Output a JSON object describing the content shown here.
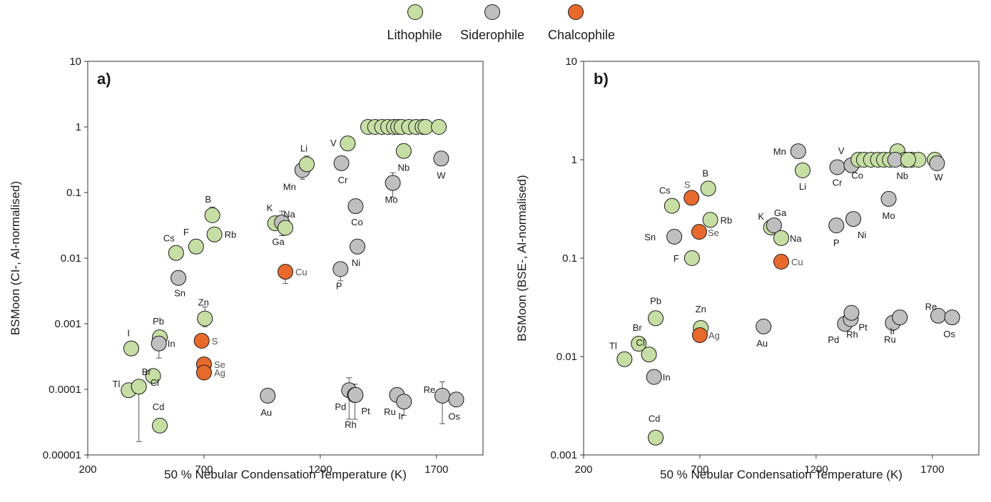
{
  "legend": {
    "items": [
      {
        "label": "Lithophile",
        "color": "#c6dea3"
      },
      {
        "label": "Siderophile",
        "color": "#bfbfbf"
      },
      {
        "label": "Chalcophile",
        "color": "#e8692c"
      }
    ]
  },
  "chart_data": [
    {
      "type": "scatter",
      "panel_label": "a)",
      "xlabel": "50 % Nebular Condensation Temperature (K)",
      "ylabel": "BSMoon (CI-, Al-normalised)",
      "xlim": [
        200,
        1900
      ],
      "ylim": [
        1e-05,
        10
      ],
      "yscale": "log",
      "xticks": [
        200,
        700,
        1200,
        1700
      ],
      "yticks": [
        1e-05,
        0.0001,
        0.001,
        0.01,
        0.1,
        1,
        10
      ],
      "ytick_labels": [
        "0.00001",
        "0.0001",
        "0.001",
        "0.01",
        "0.1",
        "1",
        "10"
      ],
      "points": [
        {
          "label": "I",
          "x": 387,
          "y": 0.00042,
          "group": "Lithophile"
        },
        {
          "label": "Tl",
          "x": 376,
          "y": 9.7e-05,
          "group": "Lithophile"
        },
        {
          "label": "Br",
          "x": 420,
          "y": 0.00011,
          "group": "Lithophile",
          "err": [
            1.6e-05,
            0.00011
          ]
        },
        {
          "label": "Cl",
          "x": 481,
          "y": 0.00016,
          "group": "Lithophile"
        },
        {
          "label": "Pb",
          "x": 510,
          "y": 0.00062,
          "group": "Lithophile"
        },
        {
          "label": "In",
          "x": 506,
          "y": 0.0005,
          "group": "Siderophile",
          "err": [
            0.0003,
            0.0005
          ]
        },
        {
          "label": "Cd",
          "x": 510,
          "y": 2.8e-05,
          "group": "Lithophile"
        },
        {
          "label": "Cs",
          "x": 580,
          "y": 0.012,
          "group": "Lithophile"
        },
        {
          "label": "Sn",
          "x": 590,
          "y": 0.005,
          "group": "Siderophile"
        },
        {
          "label": "F",
          "x": 666,
          "y": 0.015,
          "group": "Lithophile"
        },
        {
          "label": "B",
          "x": 736,
          "y": 0.045,
          "group": "Lithophile",
          "err": [
            0.045,
            0.06
          ]
        },
        {
          "label": "Rb",
          "x": 745,
          "y": 0.023,
          "group": "Lithophile"
        },
        {
          "label": "Zn",
          "x": 704,
          "y": 0.0012,
          "group": "Lithophile",
          "err": [
            0.0009,
            0.0018
          ]
        },
        {
          "label": "S",
          "x": 690,
          "y": 0.00055,
          "group": "Chalcophile"
        },
        {
          "label": "Se",
          "x": 700,
          "y": 0.00024,
          "group": "Chalcophile"
        },
        {
          "label": "Ag",
          "x": 700,
          "y": 0.00018,
          "group": "Chalcophile"
        },
        {
          "label": "K",
          "x": 1006,
          "y": 0.034,
          "group": "Lithophile"
        },
        {
          "label": "Na",
          "x": 1035,
          "y": 0.035,
          "group": "Siderophile",
          "err": [
            0.022,
            0.052
          ]
        },
        {
          "label": "Ga",
          "x": 1050,
          "y": 0.029,
          "group": "Lithophile"
        },
        {
          "label": "Cu",
          "x": 1050,
          "y": 0.0062,
          "group": "Chalcophile",
          "err": [
            0.0041,
            0.0079
          ]
        },
        {
          "label": "Au",
          "x": 974,
          "y": 8e-05,
          "group": "Siderophile"
        },
        {
          "label": "Mn",
          "x": 1123,
          "y": 0.22,
          "group": "Siderophile",
          "err": [
            0.16,
            0.22
          ]
        },
        {
          "label": "Li",
          "x": 1142,
          "y": 0.27,
          "group": "Lithophile",
          "err": [
            0.27,
            0.36
          ]
        },
        {
          "label": "Cr",
          "x": 1291,
          "y": 0.28,
          "group": "Siderophile"
        },
        {
          "label": "Co",
          "x": 1352,
          "y": 0.062,
          "group": "Siderophile"
        },
        {
          "label": "Ni",
          "x": 1360,
          "y": 0.015,
          "group": "Siderophile"
        },
        {
          "label": "P",
          "x": 1287,
          "y": 0.0068,
          "group": "Siderophile",
          "err": [
            0.0045,
            0.0068
          ]
        },
        {
          "label": "Pd",
          "x": 1324,
          "y": 9.7e-05,
          "group": "Siderophile",
          "err": [
            3.5e-05,
            0.00015
          ]
        },
        {
          "label": "Rh",
          "x": 1349,
          "y": 8.2e-05,
          "group": "Siderophile",
          "err": [
            3.5e-05,
            0.00012
          ]
        },
        {
          "label": "Pt",
          "x": 1352,
          "y": 8.2e-05,
          "group": "Siderophile"
        },
        {
          "label": "Ru",
          "x": 1530,
          "y": 8.2e-05,
          "group": "Siderophile"
        },
        {
          "label": "Ir",
          "x": 1560,
          "y": 6.5e-05,
          "group": "Siderophile",
          "err": [
            4e-05,
            6.5e-05
          ]
        },
        {
          "label": "Re",
          "x": 1725,
          "y": 8e-05,
          "group": "Siderophile",
          "err": [
            3e-05,
            0.00013
          ]
        },
        {
          "label": "Os",
          "x": 1785,
          "y": 7e-05,
          "group": "Siderophile"
        },
        {
          "label": "V",
          "x": 1318,
          "y": 0.56,
          "group": "Lithophile"
        },
        {
          "label": "",
          "x": 1406,
          "y": 1.0,
          "group": "Lithophile"
        },
        {
          "label": "",
          "x": 1436,
          "y": 1.0,
          "group": "Lithophile"
        },
        {
          "label": "",
          "x": 1466,
          "y": 1.0,
          "group": "Lithophile"
        },
        {
          "label": "",
          "x": 1492,
          "y": 1.0,
          "group": "Lithophile"
        },
        {
          "label": "",
          "x": 1517,
          "y": 1.0,
          "group": "Lithophile"
        },
        {
          "label": "",
          "x": 1535,
          "y": 1.0,
          "group": "Lithophile"
        },
        {
          "label": "",
          "x": 1550,
          "y": 1.0,
          "group": "Lithophile"
        },
        {
          "label": "",
          "x": 1582,
          "y": 1.0,
          "group": "Lithophile"
        },
        {
          "label": "",
          "x": 1612,
          "y": 1.0,
          "group": "Lithophile"
        },
        {
          "label": "",
          "x": 1640,
          "y": 1.0,
          "group": "Lithophile"
        },
        {
          "label": "",
          "x": 1653,
          "y": 1.0,
          "group": "Lithophile"
        },
        {
          "label": "",
          "x": 1710,
          "y": 1.0,
          "group": "Lithophile"
        },
        {
          "label": "Nb",
          "x": 1559,
          "y": 0.43,
          "group": "Lithophile"
        },
        {
          "label": "Mo",
          "x": 1512,
          "y": 0.14,
          "group": "Siderophile",
          "err": [
            0.085,
            0.2
          ]
        },
        {
          "label": "W",
          "x": 1720,
          "y": 0.33,
          "group": "Siderophile"
        }
      ]
    },
    {
      "type": "scatter",
      "panel_label": "b)",
      "xlabel": "50 % Nebular Condensation Temperature (K)",
      "ylabel": "BSMoon (BSE-, Al-normalised)",
      "xlim": [
        200,
        1900
      ],
      "ylim": [
        0.001,
        10
      ],
      "yscale": "log",
      "xticks": [
        200,
        700,
        1200,
        1700
      ],
      "yticks": [
        0.001,
        0.01,
        0.1,
        1,
        10
      ],
      "ytick_labels": [
        "0.001",
        "0.01",
        "0.1",
        "1",
        "10"
      ],
      "points": [
        {
          "label": "Tl",
          "x": 376,
          "y": 0.0094,
          "group": "Lithophile"
        },
        {
          "label": "Br",
          "x": 437,
          "y": 0.0135,
          "group": "Lithophile"
        },
        {
          "label": "Cl",
          "x": 481,
          "y": 0.0105,
          "group": "Lithophile"
        },
        {
          "label": "Pb",
          "x": 510,
          "y": 0.0245,
          "group": "Lithophile"
        },
        {
          "label": "In",
          "x": 503,
          "y": 0.0062,
          "group": "Siderophile"
        },
        {
          "label": "Cd",
          "x": 510,
          "y": 0.0015,
          "group": "Lithophile"
        },
        {
          "label": "Zn",
          "x": 704,
          "y": 0.0195,
          "group": "Lithophile"
        },
        {
          "label": "Ag",
          "x": 700,
          "y": 0.0165,
          "group": "Chalcophile"
        },
        {
          "label": "Au",
          "x": 974,
          "y": 0.0202,
          "group": "Siderophile"
        },
        {
          "label": "Pd",
          "x": 1324,
          "y": 0.0215,
          "group": "Siderophile"
        },
        {
          "label": "Rh",
          "x": 1349,
          "y": 0.024,
          "group": "Siderophile"
        },
        {
          "label": "Pt",
          "x": 1352,
          "y": 0.0278,
          "group": "Siderophile"
        },
        {
          "label": "Ru",
          "x": 1530,
          "y": 0.022,
          "group": "Siderophile"
        },
        {
          "label": "Ir",
          "x": 1560,
          "y": 0.025,
          "group": "Siderophile"
        },
        {
          "label": "Re",
          "x": 1725,
          "y": 0.026,
          "group": "Siderophile"
        },
        {
          "label": "Os",
          "x": 1785,
          "y": 0.025,
          "group": "Siderophile"
        },
        {
          "label": "Cs",
          "x": 580,
          "y": 0.34,
          "group": "Lithophile"
        },
        {
          "label": "S",
          "x": 664,
          "y": 0.41,
          "group": "Chalcophile"
        },
        {
          "label": "B",
          "x": 736,
          "y": 0.51,
          "group": "Lithophile"
        },
        {
          "label": "Rb",
          "x": 745,
          "y": 0.245,
          "group": "Lithophile"
        },
        {
          "label": "Sn",
          "x": 590,
          "y": 0.165,
          "group": "Siderophile"
        },
        {
          "label": "Se",
          "x": 697,
          "y": 0.185,
          "group": "Chalcophile"
        },
        {
          "label": "F",
          "x": 666,
          "y": 0.1,
          "group": "Lithophile"
        },
        {
          "label": "K",
          "x": 1006,
          "y": 0.205,
          "group": "Lithophile"
        },
        {
          "label": "Ga",
          "x": 1019,
          "y": 0.215,
          "group": "Siderophile"
        },
        {
          "label": "Na",
          "x": 1050,
          "y": 0.16,
          "group": "Lithophile"
        },
        {
          "label": "Cu",
          "x": 1050,
          "y": 0.092,
          "group": "Chalcophile"
        },
        {
          "label": "Mn",
          "x": 1123,
          "y": 1.22,
          "group": "Siderophile"
        },
        {
          "label": "Li",
          "x": 1142,
          "y": 0.78,
          "group": "Lithophile"
        },
        {
          "label": "Cr",
          "x": 1291,
          "y": 0.84,
          "group": "Siderophile"
        },
        {
          "label": "Co",
          "x": 1352,
          "y": 0.88,
          "group": "Siderophile"
        },
        {
          "label": "P",
          "x": 1287,
          "y": 0.215,
          "group": "Siderophile"
        },
        {
          "label": "Ni",
          "x": 1360,
          "y": 0.25,
          "group": "Siderophile"
        },
        {
          "label": "Mo",
          "x": 1512,
          "y": 0.4,
          "group": "Siderophile"
        },
        {
          "label": "V",
          "x": 1382,
          "y": 1.0,
          "group": "Lithophile"
        },
        {
          "label": "",
          "x": 1406,
          "y": 1.0,
          "group": "Lithophile"
        },
        {
          "label": "",
          "x": 1436,
          "y": 1.0,
          "group": "Lithophile"
        },
        {
          "label": "",
          "x": 1466,
          "y": 1.0,
          "group": "Lithophile"
        },
        {
          "label": "",
          "x": 1492,
          "y": 1.0,
          "group": "Lithophile"
        },
        {
          "label": "",
          "x": 1517,
          "y": 1.0,
          "group": "Lithophile"
        },
        {
          "label": "",
          "x": 1550,
          "y": 1.22,
          "group": "Lithophile"
        },
        {
          "label": "",
          "x": 1582,
          "y": 1.0,
          "group": "Lithophile"
        },
        {
          "label": "",
          "x": 1612,
          "y": 1.0,
          "group": "Lithophile"
        },
        {
          "label": "",
          "x": 1640,
          "y": 1.0,
          "group": "Lithophile"
        },
        {
          "label": "",
          "x": 1710,
          "y": 1.0,
          "group": "Lithophile"
        },
        {
          "label": "Nb",
          "x": 1540,
          "y": 1.0,
          "group": "Siderophile"
        },
        {
          "label": "",
          "x": 1596,
          "y": 1.0,
          "group": "Lithophile"
        },
        {
          "label": "W",
          "x": 1720,
          "y": 0.92,
          "group": "Siderophile"
        }
      ]
    }
  ]
}
